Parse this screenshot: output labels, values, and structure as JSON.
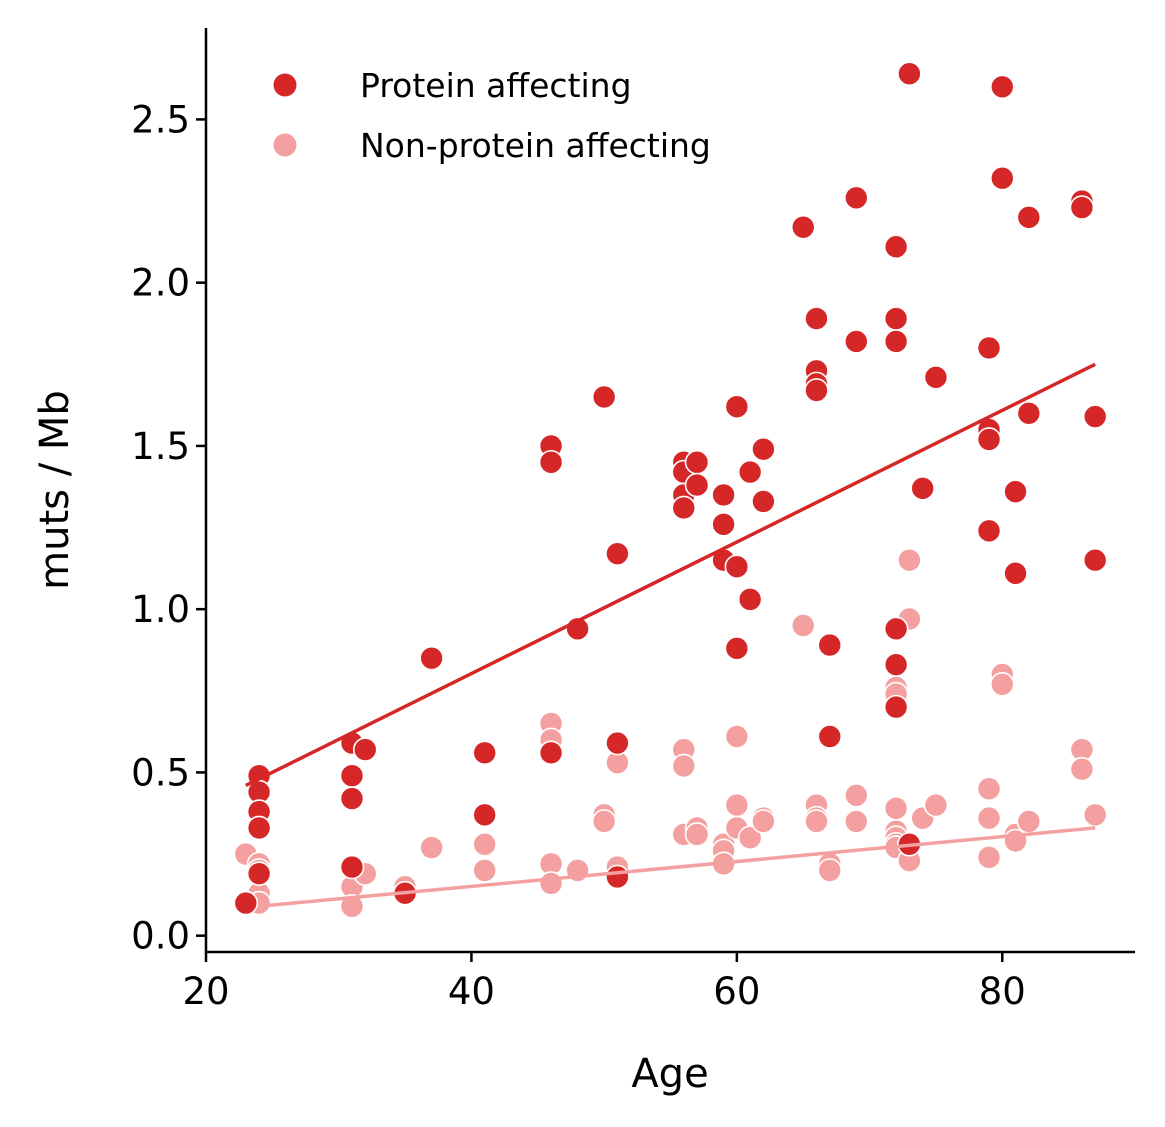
{
  "chart_data": {
    "type": "scatter",
    "title": "",
    "xlabel": "Age",
    "ylabel": "muts / Mb",
    "xlim": [
      20,
      90
    ],
    "ylim": [
      -0.05,
      2.78
    ],
    "xticks": [
      "20",
      "40",
      "60",
      "80"
    ],
    "yticks": [
      "0.0",
      "0.5",
      "1.0",
      "1.5",
      "2.0",
      "2.5"
    ],
    "grid": false,
    "legend_position": "top-left",
    "series": [
      {
        "name": "Protein affecting",
        "color": "#d62728",
        "trend": [
          [
            23,
            0.46
          ],
          [
            87,
            1.75
          ]
        ],
        "points": [
          [
            23,
            0.1
          ],
          [
            24,
            0.49
          ],
          [
            24,
            0.44
          ],
          [
            24,
            0.38
          ],
          [
            24,
            0.33
          ],
          [
            24,
            0.19
          ],
          [
            31,
            0.59
          ],
          [
            31,
            0.49
          ],
          [
            31,
            0.42
          ],
          [
            31,
            0.21
          ],
          [
            32,
            0.57
          ],
          [
            35,
            0.13
          ],
          [
            37,
            0.85
          ],
          [
            41,
            0.56
          ],
          [
            41,
            0.37
          ],
          [
            46,
            1.5
          ],
          [
            46,
            1.45
          ],
          [
            46,
            0.56
          ],
          [
            48,
            0.94
          ],
          [
            50,
            1.65
          ],
          [
            51,
            1.17
          ],
          [
            51,
            0.59
          ],
          [
            51,
            0.18
          ],
          [
            56,
            1.45
          ],
          [
            56,
            1.42
          ],
          [
            56,
            1.35
          ],
          [
            56,
            1.31
          ],
          [
            57,
            1.45
          ],
          [
            57,
            1.38
          ],
          [
            59,
            1.35
          ],
          [
            59,
            1.26
          ],
          [
            59,
            1.15
          ],
          [
            60,
            1.62
          ],
          [
            60,
            1.13
          ],
          [
            60,
            0.88
          ],
          [
            61,
            1.42
          ],
          [
            61,
            1.03
          ],
          [
            62,
            1.49
          ],
          [
            62,
            1.33
          ],
          [
            65,
            2.17
          ],
          [
            66,
            1.89
          ],
          [
            66,
            1.73
          ],
          [
            66,
            1.69
          ],
          [
            66,
            1.67
          ],
          [
            67,
            0.89
          ],
          [
            67,
            0.61
          ],
          [
            69,
            2.26
          ],
          [
            69,
            1.82
          ],
          [
            72,
            2.11
          ],
          [
            72,
            1.89
          ],
          [
            72,
            1.82
          ],
          [
            72,
            0.94
          ],
          [
            72,
            0.83
          ],
          [
            72,
            0.7
          ],
          [
            73,
            2.64
          ],
          [
            73,
            0.28
          ],
          [
            74,
            1.37
          ],
          [
            75,
            1.71
          ],
          [
            79,
            1.8
          ],
          [
            79,
            1.55
          ],
          [
            79,
            1.52
          ],
          [
            79,
            1.24
          ],
          [
            80,
            2.6
          ],
          [
            80,
            2.32
          ],
          [
            81,
            1.36
          ],
          [
            81,
            1.11
          ],
          [
            82,
            2.2
          ],
          [
            82,
            1.6
          ],
          [
            86,
            2.25
          ],
          [
            86,
            2.23
          ],
          [
            87,
            1.59
          ],
          [
            87,
            1.15
          ]
        ]
      },
      {
        "name": "Non-protein affecting",
        "color": "#f4a0a0",
        "trend": [
          [
            24,
            0.09
          ],
          [
            87,
            0.33
          ]
        ],
        "points": [
          [
            23,
            0.25
          ],
          [
            24,
            0.33
          ],
          [
            24,
            0.22
          ],
          [
            24,
            0.2
          ],
          [
            24,
            0.13
          ],
          [
            24,
            0.1
          ],
          [
            31,
            0.15
          ],
          [
            31,
            0.09
          ],
          [
            32,
            0.19
          ],
          [
            35,
            0.15
          ],
          [
            37,
            0.27
          ],
          [
            41,
            0.28
          ],
          [
            41,
            0.2
          ],
          [
            46,
            0.65
          ],
          [
            46,
            0.6
          ],
          [
            46,
            0.22
          ],
          [
            46,
            0.16
          ],
          [
            48,
            0.2
          ],
          [
            50,
            0.37
          ],
          [
            50,
            0.35
          ],
          [
            51,
            0.53
          ],
          [
            51,
            0.21
          ],
          [
            56,
            0.57
          ],
          [
            56,
            0.52
          ],
          [
            56,
            0.31
          ],
          [
            57,
            0.33
          ],
          [
            57,
            0.31
          ],
          [
            59,
            0.28
          ],
          [
            59,
            0.26
          ],
          [
            59,
            0.22
          ],
          [
            60,
            0.61
          ],
          [
            60,
            0.4
          ],
          [
            60,
            0.33
          ],
          [
            61,
            0.3
          ],
          [
            62,
            0.36
          ],
          [
            62,
            0.35
          ],
          [
            65,
            0.95
          ],
          [
            66,
            0.4
          ],
          [
            66,
            0.36
          ],
          [
            66,
            0.35
          ],
          [
            67,
            0.22
          ],
          [
            67,
            0.2
          ],
          [
            69,
            0.43
          ],
          [
            69,
            0.35
          ],
          [
            72,
            0.76
          ],
          [
            72,
            0.74
          ],
          [
            72,
            0.39
          ],
          [
            72,
            0.32
          ],
          [
            72,
            0.3
          ],
          [
            72,
            0.28
          ],
          [
            72,
            0.27
          ],
          [
            73,
            1.15
          ],
          [
            73,
            0.97
          ],
          [
            73,
            0.23
          ],
          [
            74,
            0.36
          ],
          [
            75,
            0.4
          ],
          [
            79,
            0.45
          ],
          [
            79,
            0.36
          ],
          [
            79,
            0.24
          ],
          [
            80,
            0.8
          ],
          [
            80,
            0.77
          ],
          [
            81,
            0.31
          ],
          [
            81,
            0.29
          ],
          [
            82,
            0.35
          ],
          [
            86,
            0.57
          ],
          [
            86,
            0.51
          ],
          [
            87,
            0.37
          ]
        ]
      }
    ]
  }
}
